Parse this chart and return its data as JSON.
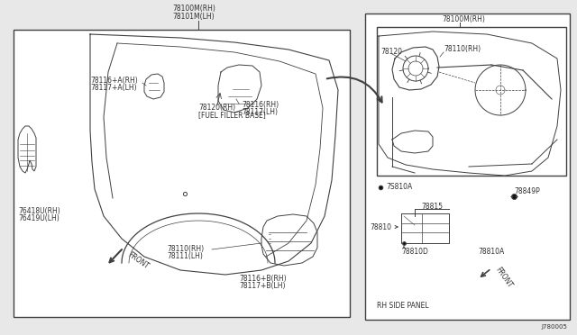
{
  "bg_color": "#e8e8e8",
  "box_bg": "#ffffff",
  "line_color": "#404040",
  "text_color": "#303030",
  "font_family": "DejaVu Sans",
  "font_size": 5.5,
  "diagram_code": "J780005",
  "main_label_top1": "78100M(RH)",
  "main_label_top2": "78101M(LH)",
  "inset_label_top": "78100M(RH)",
  "labels": {
    "78116_A": [
      "78116+A(RH)",
      "78117+A(LH)"
    ],
    "78120": [
      "78120(RH)",
      "[FUEL FILLER BASE]"
    ],
    "78116": [
      "78116(RH)",
      "78117(LH)"
    ],
    "76418": [
      "76418U(RH)",
      "76419U(LH)"
    ],
    "78110": [
      "78110(RH)",
      "78111(LH)"
    ],
    "78116_B": [
      "78116+B(RH)",
      "78117+B(LH)"
    ],
    "inset_78120": "78120",
    "inset_78110": "78110(RH)",
    "78810A_lbl": "78810A",
    "78815_lbl": "78815",
    "78810_lbl": "78810",
    "78810D_lbl": "78810D",
    "78849P_lbl": "78849P",
    "78810A2_lbl": "78810A",
    "rh_side": "RH SIDE PANEL",
    "front_main": "FRONT",
    "front_inset": "FRONT",
    "78810A_bot": "78810A",
    "78810A_top": "78810A",
    "7S810A_lbl": "7S810A"
  }
}
